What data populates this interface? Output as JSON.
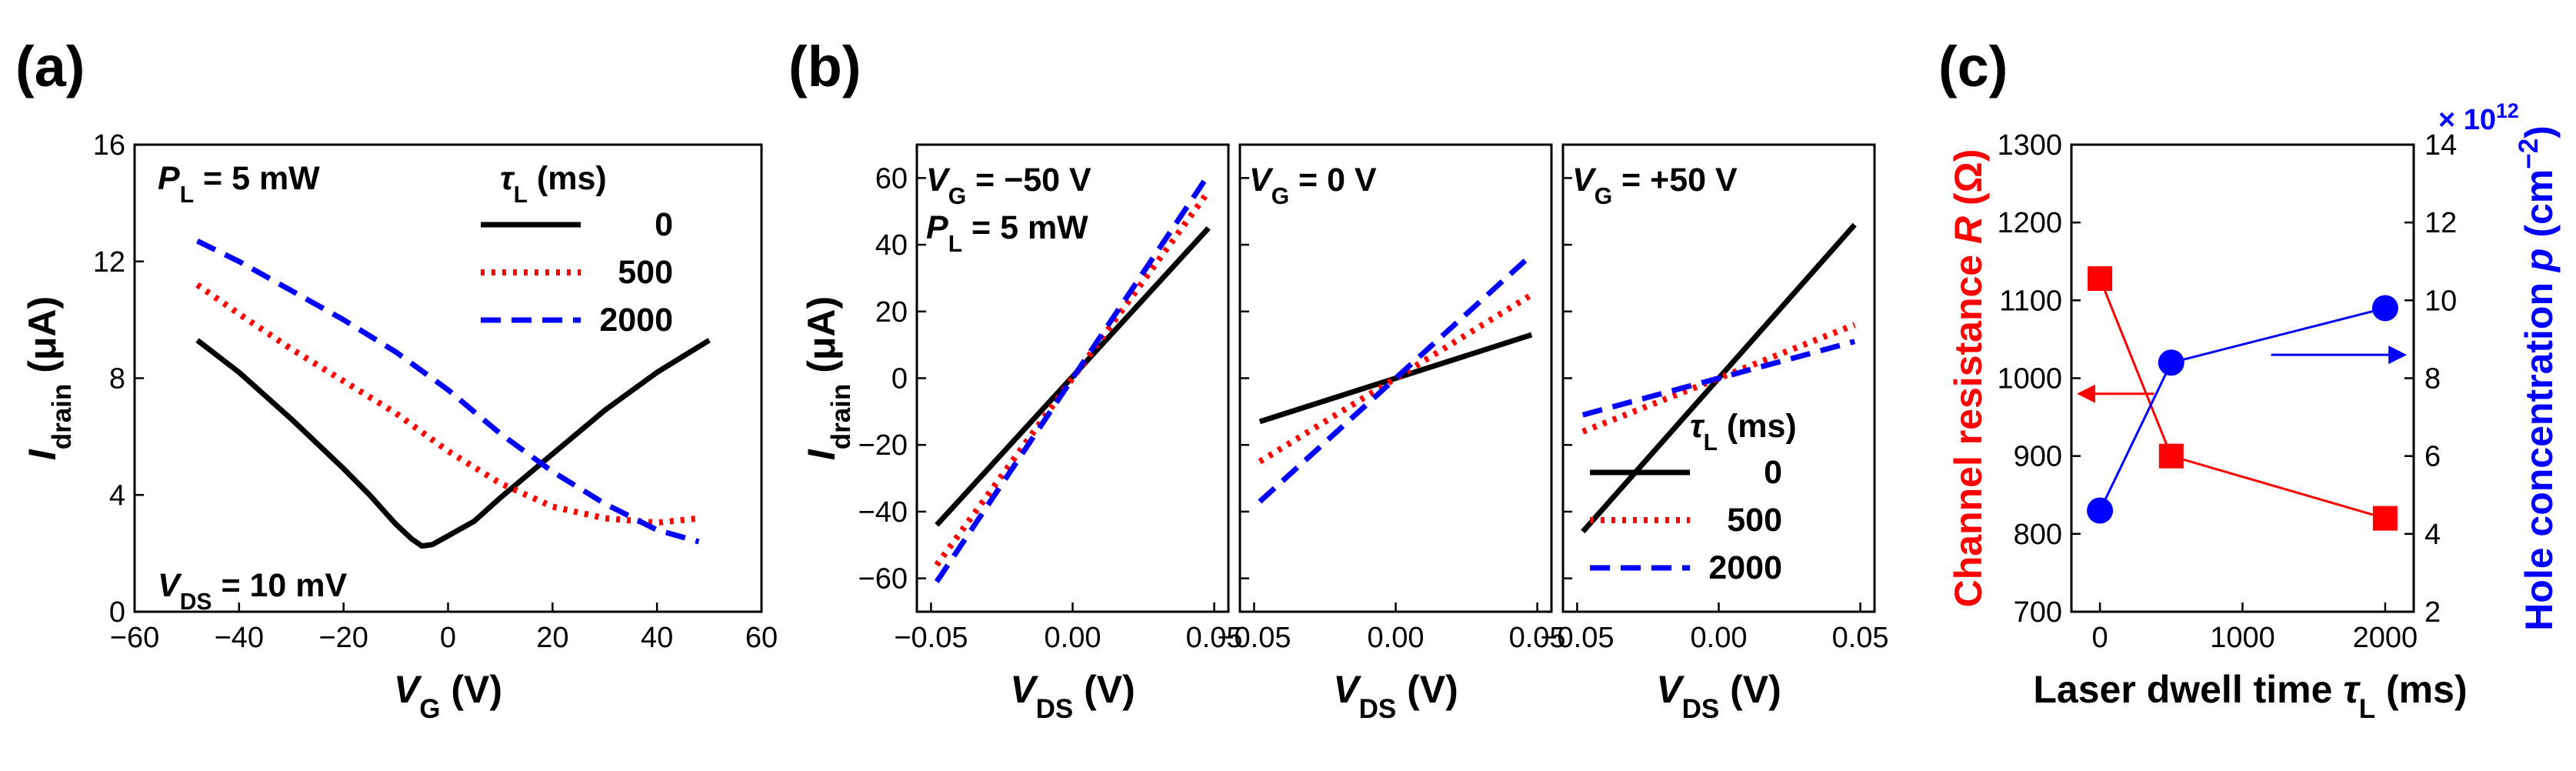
{
  "figure": {
    "panel_labels": [
      "(a)",
      "(b)",
      "(c)"
    ]
  },
  "legend_symbol": "τ",
  "legend_unit": " (ms)",
  "styles": {
    "series_colors": [
      "#000000",
      "#ff0000",
      "#0000ff"
    ],
    "red_axis": "#ff0000",
    "blue_axis": "#0000ff"
  },
  "chart_data": [
    {
      "id": "a",
      "type": "line",
      "panel": "(a)",
      "xlabel_main": "V",
      "xlabel_sub": "G",
      "xlabel_unit": " (V)",
      "ylabel_main": "I",
      "ylabel_sub": "drain",
      "ylabel_unit": " (μA)",
      "xlim": [
        -60,
        60
      ],
      "ylim": [
        0,
        16
      ],
      "xticks": [
        -60,
        -40,
        -20,
        0,
        20,
        40,
        60
      ],
      "xtick_labels": [
        "−60",
        "−40",
        "−20",
        "0",
        "20",
        "40",
        "60"
      ],
      "yticks": [
        0,
        4,
        8,
        12,
        16
      ],
      "ytick_labels": [
        "0",
        "4",
        "8",
        "12",
        "16"
      ],
      "annotations": [
        {
          "main": "P",
          "sub": "L",
          "rest": " = 5 mW"
        },
        {
          "main": "V",
          "sub": "DS",
          "rest": " = 10 mV"
        }
      ],
      "legend_title": "τL (ms)",
      "series": [
        {
          "name": "0",
          "style": "solid",
          "x": [
            -48,
            -40,
            -30,
            -20,
            -15,
            -10,
            -7,
            -5,
            -3,
            0,
            5,
            10,
            20,
            30,
            40,
            50
          ],
          "y": [
            9.3,
            8.2,
            6.6,
            4.9,
            4.0,
            3.0,
            2.5,
            2.25,
            2.3,
            2.6,
            3.1,
            3.9,
            5.4,
            6.9,
            8.2,
            9.3
          ]
        },
        {
          "name": "500",
          "style": "dotted",
          "x": [
            -48,
            -40,
            -30,
            -20,
            -10,
            0,
            10,
            20,
            30,
            40,
            48
          ],
          "y": [
            11.2,
            10.2,
            9.0,
            7.9,
            6.8,
            5.5,
            4.4,
            3.6,
            3.2,
            3.05,
            3.2
          ]
        },
        {
          "name": "2000",
          "style": "dashed",
          "x": [
            -48,
            -40,
            -30,
            -20,
            -10,
            0,
            10,
            20,
            30,
            40,
            48
          ],
          "y": [
            12.7,
            12.0,
            11.0,
            10.0,
            8.9,
            7.6,
            6.1,
            4.8,
            3.7,
            2.8,
            2.4
          ]
        }
      ]
    },
    {
      "id": "b1",
      "type": "line",
      "panel": "(b)",
      "xlabel_main": "V",
      "xlabel_sub": "DS",
      "xlabel_unit": " (V)",
      "ylabel_main": "I",
      "ylabel_sub": "drain",
      "ylabel_unit": " (μA)",
      "xlim": [
        -0.055,
        0.055
      ],
      "ylim": [
        -70,
        70
      ],
      "xticks": [
        -0.05,
        0,
        0.05
      ],
      "xtick_labels": [
        "−0.05",
        "0.00",
        "0.05"
      ],
      "yticks": [
        -60,
        -40,
        -20,
        0,
        20,
        40,
        60
      ],
      "ytick_labels": [
        "−60",
        "−40",
        "−20",
        "0",
        "20",
        "40",
        "60"
      ],
      "annotations": [
        {
          "main": "V",
          "sub": "G",
          "rest": " = −50 V"
        },
        {
          "main": "P",
          "sub": "L",
          "rest": " = 5 mW"
        }
      ],
      "series": [
        {
          "name": "0",
          "style": "solid",
          "x": [
            -0.048,
            0.048
          ],
          "y": [
            -44,
            45
          ]
        },
        {
          "name": "500",
          "style": "dotted",
          "x": [
            -0.048,
            0.048
          ],
          "y": [
            -56,
            56
          ]
        },
        {
          "name": "2000",
          "style": "dashed",
          "x": [
            -0.048,
            0.048
          ],
          "y": [
            -61,
            61
          ]
        }
      ]
    },
    {
      "id": "b2",
      "type": "line",
      "xlabel_main": "V",
      "xlabel_sub": "DS",
      "xlabel_unit": " (V)",
      "xlim": [
        -0.055,
        0.055
      ],
      "ylim": [
        -70,
        70
      ],
      "xticks": [
        -0.05,
        0,
        0.05
      ],
      "xtick_labels": [
        "−0.05",
        "0.00",
        "0.05"
      ],
      "yticks": [
        -60,
        -40,
        -20,
        0,
        20,
        40,
        60
      ],
      "annotations": [
        {
          "main": "V",
          "sub": "G",
          "rest": " = 0 V"
        }
      ],
      "series": [
        {
          "name": "0",
          "style": "solid",
          "x": [
            -0.048,
            0.048
          ],
          "y": [
            -13,
            13
          ]
        },
        {
          "name": "500",
          "style": "dotted",
          "x": [
            -0.048,
            0.048
          ],
          "y": [
            -25,
            25
          ]
        },
        {
          "name": "2000",
          "style": "dashed",
          "x": [
            -0.048,
            0.048
          ],
          "y": [
            -37,
            37
          ]
        }
      ]
    },
    {
      "id": "b3",
      "type": "line",
      "xlabel_main": "V",
      "xlabel_sub": "DS",
      "xlabel_unit": " (V)",
      "xlim": [
        -0.055,
        0.055
      ],
      "ylim": [
        -70,
        70
      ],
      "xticks": [
        -0.05,
        0,
        0.05
      ],
      "xtick_labels": [
        "−0.05",
        "0.00",
        "0.05"
      ],
      "yticks": [
        -60,
        -40,
        -20,
        0,
        20,
        40,
        60
      ],
      "annotations": [
        {
          "main": "V",
          "sub": "G",
          "rest": " = +50 V"
        }
      ],
      "legend_title": "τL (ms)",
      "series": [
        {
          "name": "0",
          "style": "solid",
          "x": [
            -0.048,
            0.048
          ],
          "y": [
            -46,
            46
          ]
        },
        {
          "name": "500",
          "style": "dotted",
          "x": [
            -0.048,
            0.048
          ],
          "y": [
            -16,
            16
          ]
        },
        {
          "name": "2000",
          "style": "dashed",
          "x": [
            -0.048,
            0.048
          ],
          "y": [
            -11,
            11
          ]
        }
      ]
    },
    {
      "id": "c",
      "type": "scatter",
      "panel": "(c)",
      "xlabel_pre": "Laser dwell time ",
      "xlabel_main": "τ",
      "xlabel_sub": "L",
      "xlabel_unit": " (ms)",
      "ylabel_left_pre": "Channel resistance ",
      "ylabel_left_main": "R",
      "ylabel_left_unit": " (Ω)",
      "ylabel_right_pre": "Hole concentration ",
      "ylabel_right_main": "p",
      "ylabel_right_unit": " (cm",
      "ylabel_right_exp": "−2",
      "ylabel_right_close": ")",
      "multiplier_text": "× 10",
      "multiplier_exp": "12",
      "xlim": [
        -200,
        2200
      ],
      "xticks": [
        0,
        1000,
        2000
      ],
      "xtick_labels": [
        "0",
        "1000",
        "2000"
      ],
      "ylim_left": [
        700,
        1300
      ],
      "yticks_left": [
        700,
        800,
        900,
        1000,
        1100,
        1200,
        1300
      ],
      "ytick_labels_left": [
        "700",
        "800",
        "900",
        "1000",
        "1100",
        "1200",
        "1300"
      ],
      "ylim_right": [
        2,
        14
      ],
      "yticks_right": [
        2,
        4,
        6,
        8,
        10,
        12,
        14
      ],
      "ytick_labels_right": [
        "2",
        "4",
        "6",
        "8",
        "10",
        "12",
        "14"
      ],
      "series": [
        {
          "name": "Channel resistance R",
          "axis": "left",
          "marker": "square",
          "color": "#ff0000",
          "x": [
            0,
            500,
            2000
          ],
          "y": [
            1128,
            900,
            820
          ]
        },
        {
          "name": "Hole concentration p",
          "axis": "right",
          "marker": "circle",
          "color": "#0000ff",
          "x": [
            0,
            500,
            2000
          ],
          "y": [
            4.6,
            8.4,
            9.8
          ]
        }
      ]
    }
  ]
}
